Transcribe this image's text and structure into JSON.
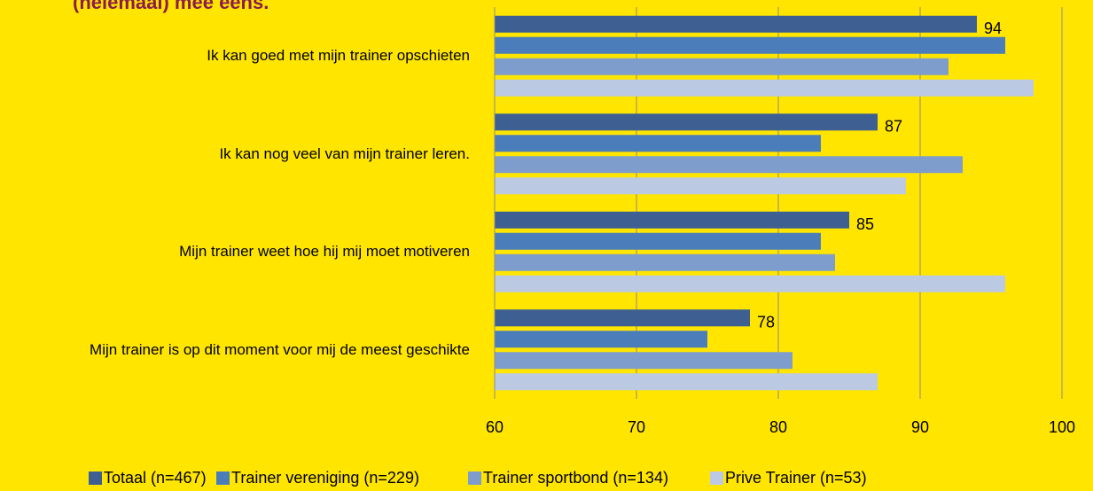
{
  "chart_data": {
    "type": "hbar",
    "title": "(helemaal) mee eens.",
    "categories": [
      "Ik kan goed met mijn trainer opschieten",
      "Ik kan nog veel van mijn trainer leren.",
      "Mijn trainer weet hoe hij mij moet motiveren",
      "Mijn trainer is op dit moment voor mij de meest geschikte"
    ],
    "series": [
      {
        "name": "Totaal (n=467)",
        "color": "#3d5f92",
        "values": [
          94,
          87,
          85,
          78
        ],
        "data_labels": true
      },
      {
        "name": "Trainer vereniging (n=229)",
        "color": "#4a7dba",
        "values": [
          96,
          83,
          83,
          75
        ]
      },
      {
        "name": "Trainer sportbond (n=134)",
        "color": "#7f9dcc",
        "values": [
          92,
          93,
          84,
          81
        ]
      },
      {
        "name": "Prive Trainer (n=53)",
        "color": "#bcc9e3",
        "values": [
          98,
          89,
          96,
          87
        ]
      }
    ],
    "xlim": [
      60,
      100
    ],
    "xticks": [
      60,
      70,
      80,
      90,
      100
    ],
    "grid": true,
    "legend": "bottom"
  }
}
